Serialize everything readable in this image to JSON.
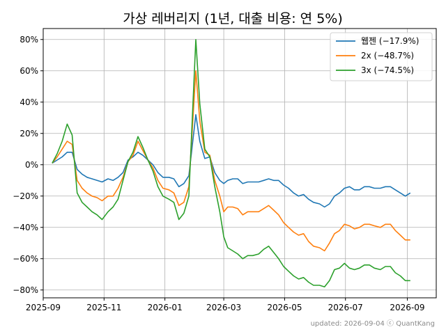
{
  "chart_data": {
    "type": "line",
    "title": "가상 레버리지 (1년, 대출 비용: 연 5%)",
    "xlabel": "",
    "ylabel": "",
    "grid": true,
    "legend_position": "top-right",
    "x_ticks": [
      "2025-09",
      "2025-11",
      "2026-01",
      "2026-03",
      "2026-05",
      "2026-07",
      "2026-09"
    ],
    "y_ticks": [
      "80%",
      "60%",
      "40%",
      "20%",
      "0%",
      "-20%",
      "-40%",
      "-60%",
      "-80%"
    ],
    "x_range": [
      "2025-09-01",
      "2026-09-30"
    ],
    "ylim": [
      -85,
      87
    ],
    "x": [
      "2025-09-10",
      "2025-09-15",
      "2025-09-20",
      "2025-09-25",
      "2025-09-30",
      "2025-10-05",
      "2025-10-10",
      "2025-10-15",
      "2025-10-20",
      "2025-10-25",
      "2025-10-30",
      "2025-11-05",
      "2025-11-10",
      "2025-11-15",
      "2025-11-20",
      "2025-11-25",
      "2025-11-30",
      "2025-12-05",
      "2025-12-10",
      "2025-12-15",
      "2025-12-20",
      "2025-12-25",
      "2025-12-30",
      "2026-01-05",
      "2026-01-10",
      "2026-01-15",
      "2026-01-20",
      "2026-01-25",
      "2026-02-01",
      "2026-02-05",
      "2026-02-10",
      "2026-02-15",
      "2026-02-20",
      "2026-02-25",
      "2026-03-01",
      "2026-03-05",
      "2026-03-10",
      "2026-03-15",
      "2026-03-20",
      "2026-03-25",
      "2026-03-30",
      "2026-04-05",
      "2026-04-10",
      "2026-04-15",
      "2026-04-20",
      "2026-04-25",
      "2026-04-30",
      "2026-05-05",
      "2026-05-10",
      "2026-05-15",
      "2026-05-20",
      "2026-05-25",
      "2026-05-30",
      "2026-06-05",
      "2026-06-10",
      "2026-06-15",
      "2026-06-20",
      "2026-06-25",
      "2026-06-30",
      "2026-07-05",
      "2026-07-10",
      "2026-07-15",
      "2026-07-20",
      "2026-07-25",
      "2026-07-30",
      "2026-08-05",
      "2026-08-10",
      "2026-08-15",
      "2026-08-20",
      "2026-08-25",
      "2026-08-30",
      "2026-09-04"
    ],
    "series": [
      {
        "name": "웹젠 (−17.9%)",
        "color": "#1f77b4",
        "values": [
          1,
          3,
          5,
          8,
          8,
          -3,
          -6,
          -8,
          -9,
          -10,
          -11,
          -9,
          -10,
          -8,
          -5,
          3,
          5,
          8,
          6,
          3,
          0,
          -5,
          -8,
          -8,
          -9,
          -14,
          -12,
          -7,
          32,
          15,
          4,
          5,
          -5,
          -10,
          -12,
          -10,
          -9,
          -9,
          -12,
          -11,
          -11,
          -11,
          -10,
          -9,
          -10,
          -10,
          -13,
          -15,
          -18,
          -20,
          -19,
          -22,
          -24,
          -25,
          -27,
          -25,
          -20,
          -18,
          -15,
          -14,
          -16,
          -16,
          -14,
          -14,
          -15,
          -15,
          -14,
          -14,
          -16,
          -18,
          -20,
          -18
        ]
      },
      {
        "name": "2x (−48.7%)",
        "color": "#ff7f0e",
        "values": [
          1,
          5,
          10,
          15,
          13,
          -10,
          -15,
          -18,
          -20,
          -21,
          -23,
          -20,
          -20,
          -15,
          -8,
          2,
          6,
          15,
          9,
          3,
          -2,
          -10,
          -15,
          -16,
          -18,
          -26,
          -24,
          -14,
          60,
          28,
          8,
          6,
          -10,
          -20,
          -30,
          -27,
          -27,
          -28,
          -32,
          -30,
          -30,
          -30,
          -28,
          -26,
          -29,
          -32,
          -37,
          -40,
          -43,
          -45,
          -44,
          -49,
          -52,
          -53,
          -55,
          -50,
          -44,
          -42,
          -38,
          -39,
          -41,
          -40,
          -38,
          -38,
          -39,
          -40,
          -38,
          -38,
          -42,
          -45,
          -48,
          -48
        ]
      },
      {
        "name": "3x (−74.5%)",
        "color": "#2ca02c",
        "values": [
          1,
          7,
          15,
          26,
          19,
          -18,
          -24,
          -27,
          -30,
          -32,
          -35,
          -30,
          -27,
          -22,
          -10,
          2,
          8,
          18,
          11,
          3,
          -4,
          -14,
          -20,
          -22,
          -24,
          -35,
          -31,
          -20,
          80,
          39,
          10,
          5,
          -14,
          -30,
          -46,
          -53,
          -55,
          -57,
          -60,
          -58,
          -58,
          -57,
          -54,
          -52,
          -56,
          -60,
          -65,
          -68,
          -71,
          -73,
          -72,
          -75,
          -77,
          -77,
          -78,
          -74,
          -67,
          -66,
          -63,
          -66,
          -67,
          -66,
          -64,
          -64,
          -66,
          -67,
          -65,
          -65,
          -69,
          -71,
          -74,
          -74
        ]
      }
    ]
  },
  "footer": "updated: 2026-09-04 ⓒ QuantKang"
}
